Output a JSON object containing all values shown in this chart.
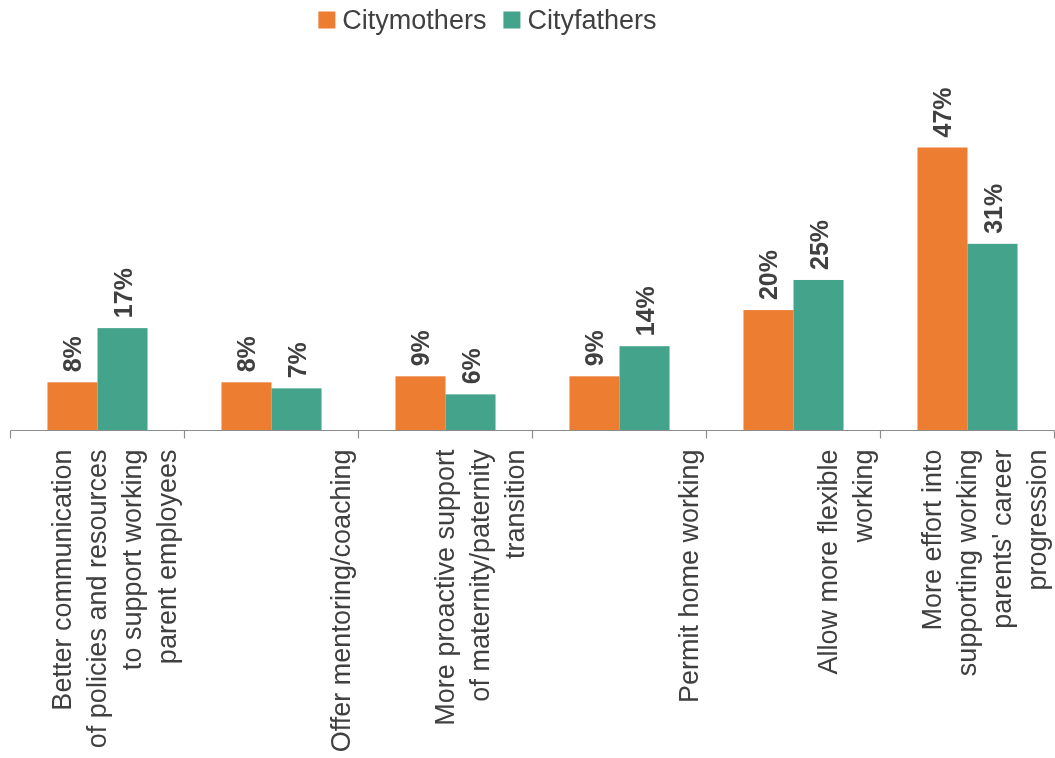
{
  "chart_data": {
    "type": "bar",
    "categories": [
      "Better communication\nof policies and resources\nto support working\nparent employees",
      "Offer mentoring/coaching",
      "More proactive support\nof maternity/paternity\ntransition",
      "Permit home working",
      "Allow more flexible\nworking",
      "More effort into\nsupporting working\nparents' career\nprogression"
    ],
    "series": [
      {
        "name": "Citymothers",
        "color": "#ed7d31",
        "values": [
          8,
          8,
          9,
          9,
          20,
          47
        ],
        "value_labels": [
          "8%",
          "8%",
          "9%",
          "9%",
          "20%",
          "47%"
        ]
      },
      {
        "name": "Cityfathers",
        "color": "#44a38b",
        "values": [
          17,
          7,
          6,
          14,
          25,
          31
        ],
        "value_labels": [
          "17%",
          "7%",
          "6%",
          "14%",
          "25%",
          "31%"
        ]
      }
    ],
    "legend": "top"
  }
}
